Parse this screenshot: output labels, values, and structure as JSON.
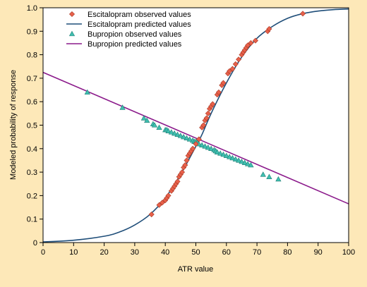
{
  "chart_data": {
    "type": "scatter",
    "title": "",
    "xlabel": "ATR value",
    "ylabel": "Modeled probability of response",
    "xlim": [
      0,
      100
    ],
    "ylim": [
      0,
      1
    ],
    "x_ticks": [
      0,
      10,
      20,
      30,
      40,
      50,
      60,
      70,
      80,
      90,
      100
    ],
    "y_ticks": [
      0,
      0.1,
      0.2,
      0.3,
      0.4,
      0.5,
      0.6,
      0.7,
      0.8,
      0.9,
      1.0
    ],
    "x_tick_labels": [
      "0",
      "10",
      "20",
      "30",
      "40",
      "50",
      "60",
      "70",
      "80",
      "90",
      "100"
    ],
    "y_tick_labels": [
      "0",
      "0.1",
      "0.2",
      "0.3",
      "0.4",
      "0.5",
      "0.6",
      "0.7",
      "0.8",
      "0.9",
      "1.0"
    ],
    "grid": false,
    "legend_position": "top-left",
    "legend": [
      "Escitalopram observed values",
      "Escitalopram predicted values",
      "Bupropion observed values",
      "Bupropion predicted values"
    ],
    "colors": {
      "background": "#fde8b8",
      "plot_background": "#ffffff",
      "escitalopram_marker": "#e8604a",
      "escitalopram_line": "#1f4e79",
      "bupropion_marker": "#3fbfb0",
      "bupropion_line": "#8b1a8b"
    },
    "series": [
      {
        "name": "Escitalopram observed values",
        "type": "scatter",
        "marker": "diamond",
        "points": [
          [
            35.5,
            0.12
          ],
          [
            38,
            0.16
          ],
          [
            39,
            0.17
          ],
          [
            40,
            0.18
          ],
          [
            40.5,
            0.19
          ],
          [
            41,
            0.2
          ],
          [
            42,
            0.22
          ],
          [
            42.5,
            0.23
          ],
          [
            43,
            0.24
          ],
          [
            43.5,
            0.25
          ],
          [
            44,
            0.26
          ],
          [
            44.5,
            0.28
          ],
          [
            45,
            0.29
          ],
          [
            45.5,
            0.3
          ],
          [
            46,
            0.32
          ],
          [
            46.5,
            0.33
          ],
          [
            47,
            0.35
          ],
          [
            47.5,
            0.37
          ],
          [
            48,
            0.38
          ],
          [
            48.5,
            0.39
          ],
          [
            49,
            0.4
          ],
          [
            50,
            0.42
          ],
          [
            51,
            0.44
          ],
          [
            52,
            0.49
          ],
          [
            52.5,
            0.5
          ],
          [
            53,
            0.52
          ],
          [
            53.5,
            0.53
          ],
          [
            54,
            0.55
          ],
          [
            54.5,
            0.57
          ],
          [
            55,
            0.58
          ],
          [
            55.5,
            0.59
          ],
          [
            57,
            0.63
          ],
          [
            57.5,
            0.64
          ],
          [
            58.5,
            0.67
          ],
          [
            59,
            0.68
          ],
          [
            60.5,
            0.72
          ],
          [
            61,
            0.73
          ],
          [
            62,
            0.74
          ],
          [
            63,
            0.76
          ],
          [
            64,
            0.78
          ],
          [
            65,
            0.8
          ],
          [
            65.5,
            0.81
          ],
          [
            66,
            0.82
          ],
          [
            66.5,
            0.83
          ],
          [
            67,
            0.84
          ],
          [
            68,
            0.85
          ],
          [
            69.5,
            0.86
          ],
          [
            73.5,
            0.9
          ],
          [
            74,
            0.91
          ],
          [
            85,
            0.975
          ]
        ]
      },
      {
        "name": "Escitalopram predicted values",
        "type": "line",
        "curve": "logistic",
        "points": [
          [
            0,
            0.003
          ],
          [
            10,
            0.01
          ],
          [
            20,
            0.027
          ],
          [
            25,
            0.045
          ],
          [
            30,
            0.075
          ],
          [
            35,
            0.12
          ],
          [
            40,
            0.19
          ],
          [
            45,
            0.29
          ],
          [
            50,
            0.41
          ],
          [
            52,
            0.46
          ],
          [
            55,
            0.55
          ],
          [
            60,
            0.68
          ],
          [
            65,
            0.79
          ],
          [
            70,
            0.87
          ],
          [
            75,
            0.92
          ],
          [
            80,
            0.955
          ],
          [
            85,
            0.975
          ],
          [
            90,
            0.986
          ],
          [
            95,
            0.992
          ],
          [
            100,
            0.995
          ]
        ]
      },
      {
        "name": "Bupropion observed values",
        "type": "scatter",
        "marker": "triangle",
        "points": [
          [
            14.5,
            0.64
          ],
          [
            26,
            0.575
          ],
          [
            33,
            0.53
          ],
          [
            34,
            0.52
          ],
          [
            36,
            0.505
          ],
          [
            36.5,
            0.5
          ],
          [
            38,
            0.49
          ],
          [
            40,
            0.48
          ],
          [
            40.5,
            0.48
          ],
          [
            41,
            0.475
          ],
          [
            42,
            0.47
          ],
          [
            43,
            0.465
          ],
          [
            44,
            0.46
          ],
          [
            45,
            0.455
          ],
          [
            46,
            0.45
          ],
          [
            47,
            0.445
          ],
          [
            48,
            0.44
          ],
          [
            49,
            0.435
          ],
          [
            49.5,
            0.43
          ],
          [
            50,
            0.43
          ],
          [
            50.5,
            0.425
          ],
          [
            51,
            0.42
          ],
          [
            52,
            0.415
          ],
          [
            53,
            0.41
          ],
          [
            54,
            0.405
          ],
          [
            55,
            0.4
          ],
          [
            56,
            0.395
          ],
          [
            56.5,
            0.39
          ],
          [
            57,
            0.385
          ],
          [
            58,
            0.38
          ],
          [
            59,
            0.375
          ],
          [
            60,
            0.37
          ],
          [
            61,
            0.365
          ],
          [
            62,
            0.36
          ],
          [
            63,
            0.355
          ],
          [
            64,
            0.35
          ],
          [
            65,
            0.345
          ],
          [
            66,
            0.34
          ],
          [
            67,
            0.335
          ],
          [
            68,
            0.33
          ],
          [
            72,
            0.29
          ],
          [
            74,
            0.28
          ],
          [
            77,
            0.27
          ]
        ]
      },
      {
        "name": "Bupropion predicted values",
        "type": "line",
        "points": [
          [
            0,
            0.725
          ],
          [
            100,
            0.165
          ]
        ]
      }
    ]
  }
}
